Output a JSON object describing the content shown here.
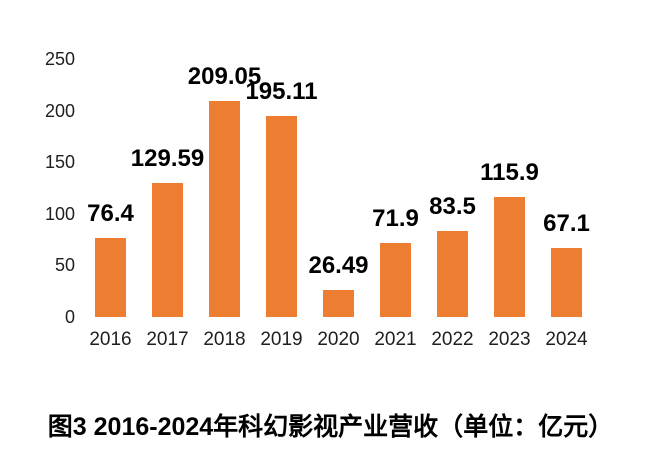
{
  "chart_data": {
    "type": "bar",
    "title": "图3 2016-2024年科幻影视产业营收（单位：亿元）",
    "xlabel": "",
    "ylabel": "",
    "categories": [
      "2016",
      "2017",
      "2018",
      "2019",
      "2020",
      "2021",
      "2022",
      "2023",
      "2024"
    ],
    "values": [
      76.4,
      129.59,
      209.05,
      195.11,
      26.49,
      71.9,
      83.5,
      115.9,
      67.1
    ],
    "data_labels": [
      "76.4",
      "129.59",
      "209.05",
      "195.11",
      "26.49",
      "71.9",
      "83.5",
      "115.9",
      "67.1"
    ],
    "ylim": [
      0,
      250
    ],
    "yticks": [
      0,
      50,
      100,
      150,
      200,
      250
    ],
    "bar_color": "#ED7D31",
    "grid": false,
    "legend_position": "none",
    "data_label_position": "above-bar"
  }
}
